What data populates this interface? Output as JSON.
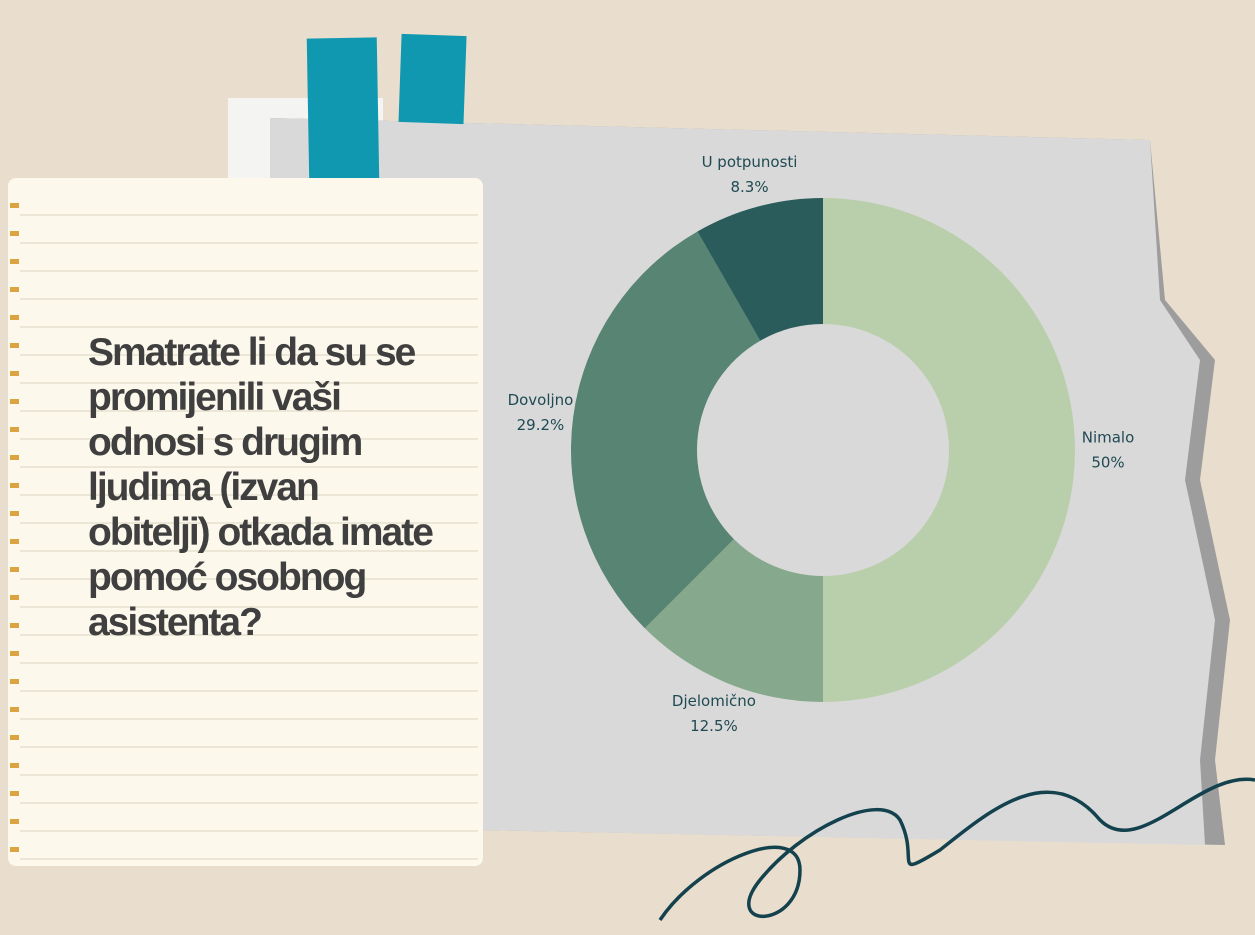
{
  "chart_data": {
    "type": "donut",
    "title": "Smatrate li da su se promijenili vaši odnosi s drugim ljudima (izvan obitelji) otkada imate pomoć osobnog asistenta?",
    "categories": [
      "Nimalo",
      "Djelomično",
      "Dovoljno",
      "U potpunosti"
    ],
    "values": [
      50,
      12.5,
      29.2,
      8.3
    ],
    "value_labels": [
      "50%",
      "12.5%",
      "29.2%",
      "8.3%"
    ],
    "colors": [
      "#b9cfab",
      "#86a88d",
      "#578473",
      "#2b5c5c"
    ]
  }
}
